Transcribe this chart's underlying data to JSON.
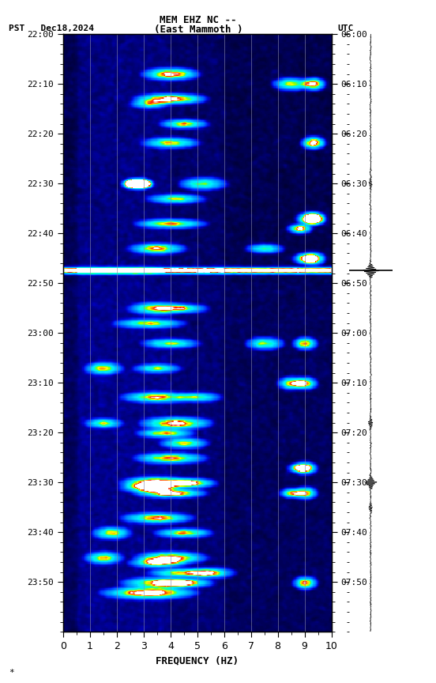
{
  "title_line1": "MEM EHZ NC --",
  "title_line2": "(East Mammoth )",
  "label_left": "PST   Dec18,2024",
  "label_right": "UTC",
  "xlabel": "FREQUENCY (HZ)",
  "freq_min": 0,
  "freq_max": 10,
  "pst_ticks": [
    "22:00",
    "22:10",
    "22:20",
    "22:30",
    "22:40",
    "22:50",
    "23:00",
    "23:10",
    "23:20",
    "23:30",
    "23:40",
    "23:50"
  ],
  "utc_ticks": [
    "06:00",
    "06:10",
    "06:20",
    "06:30",
    "06:40",
    "06:50",
    "07:00",
    "07:10",
    "07:20",
    "07:30",
    "07:40",
    "07:50"
  ],
  "tick_minutes": [
    0,
    10,
    20,
    30,
    40,
    50,
    60,
    70,
    80,
    90,
    100,
    110
  ],
  "total_minutes": 120,
  "fig_width": 5.52,
  "fig_height": 8.64,
  "dpi": 100
}
